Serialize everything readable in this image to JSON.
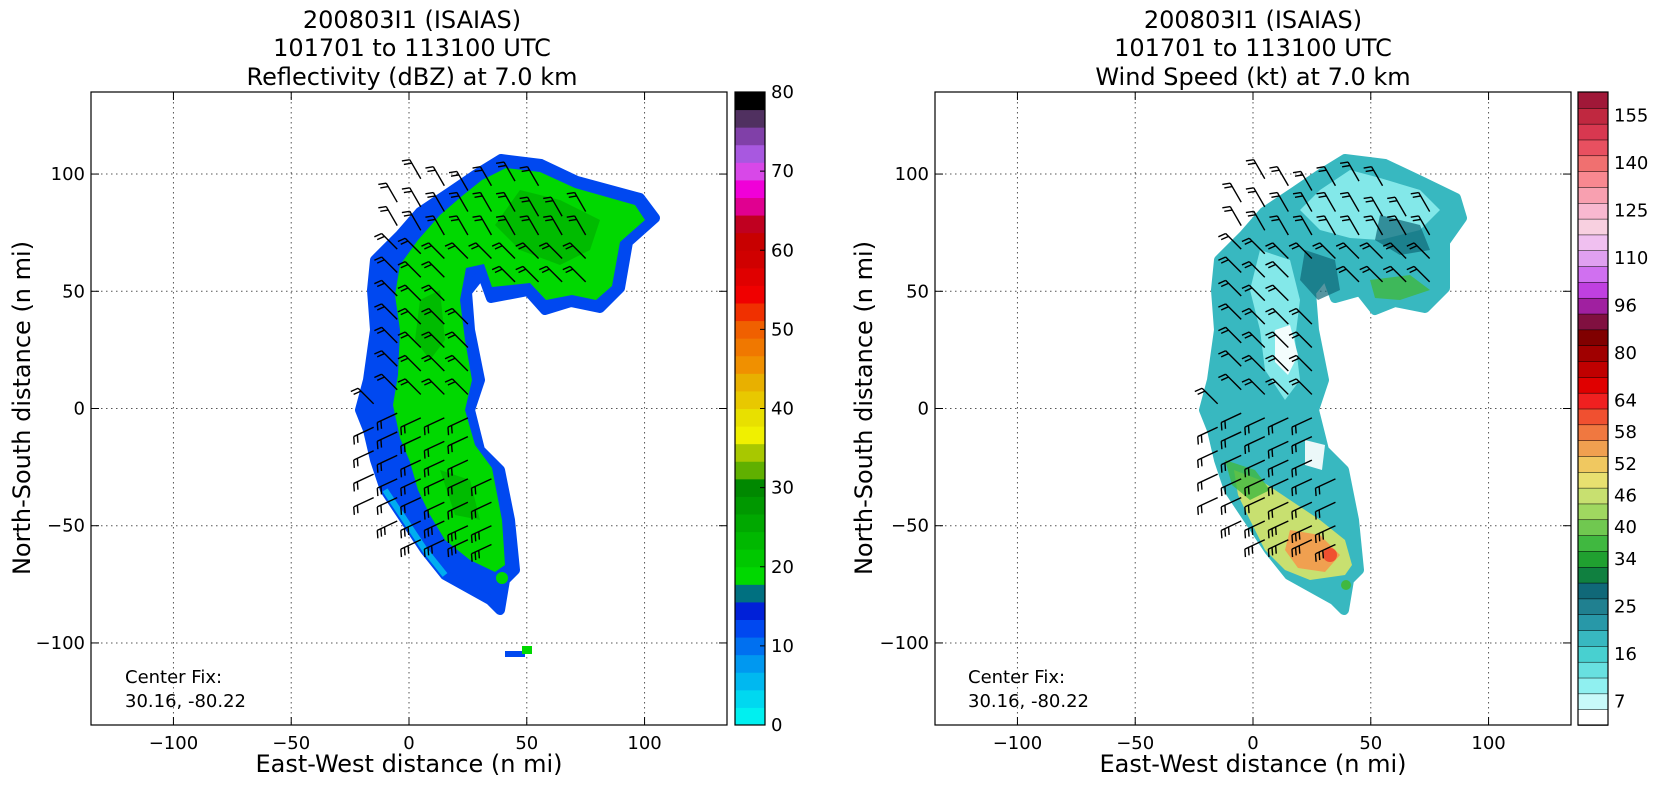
{
  "chart_data": [
    {
      "type": "heatmap",
      "title_lines": [
        "200803I1 (ISAIAS)",
        "101701 to 113100 UTC",
        "Reflectivity (dBZ) at 7.0 km"
      ],
      "xlabel": "East-West distance (n mi)",
      "ylabel": "North-South distance (n mi)",
      "xlim": [
        -135,
        135
      ],
      "ylim": [
        -135,
        135
      ],
      "x_ticks": [
        -100,
        -50,
        0,
        50,
        100
      ],
      "x_tick_labels": [
        "−100",
        "−50",
        "0",
        "50",
        "100"
      ],
      "y_ticks": [
        100,
        50,
        0,
        -50,
        -100
      ],
      "y_tick_labels": [
        "100",
        "50",
        "0",
        "−50",
        "−100"
      ],
      "grid": true,
      "grid_style": "dotted",
      "annotation_lines": [
        "Center Fix:",
        "30.16, -80.22"
      ],
      "colorbar": {
        "min": 0,
        "max": 80,
        "tick_values": [
          0,
          10,
          20,
          30,
          40,
          50,
          60,
          70,
          80
        ],
        "tick_labels": [
          "0",
          "10",
          "20",
          "30",
          "40",
          "50",
          "60",
          "70",
          "80"
        ],
        "colors": [
          "#00f0f0",
          "#00d8f0",
          "#00b8f0",
          "#0098f0",
          "#0070f0",
          "#0048f0",
          "#0020d8",
          "#007080",
          "#00d800",
          "#00c800",
          "#00b800",
          "#00a800",
          "#009800",
          "#008800",
          "#60b000",
          "#a8c800",
          "#f0f000",
          "#e8e000",
          "#e8c800",
          "#e8b000",
          "#f09000",
          "#f07800",
          "#f06000",
          "#f03000",
          "#f00000",
          "#e00000",
          "#d00000",
          "#c80000",
          "#c00020",
          "#e00090",
          "#f000d8",
          "#d848e8",
          "#a858e0",
          "#8040a8",
          "#503060",
          "#000000"
        ]
      },
      "echo_coverage": "curved band from about (-20, 100) through (0, 60), (10, 0) to (40, -75), with an eastern lobe from 0 to 100 mi east near 50 to 105 mi north",
      "dominant_range_dBZ": [
        18,
        30
      ],
      "edge_range_dBZ": [
        0,
        14
      ]
    },
    {
      "type": "heatmap",
      "title_lines": [
        "200803I1 (ISAIAS)",
        "101701 to 113100 UTC",
        "Wind Speed (kt) at 7.0 km"
      ],
      "xlabel": "East-West distance (n mi)",
      "ylabel": "North-South distance (n mi)",
      "xlim": [
        -135,
        135
      ],
      "ylim": [
        -135,
        135
      ],
      "x_ticks": [
        -100,
        -50,
        0,
        50,
        100
      ],
      "x_tick_labels": [
        "−100",
        "−50",
        "0",
        "50",
        "100"
      ],
      "y_ticks": [
        100,
        50,
        0,
        -50,
        -100
      ],
      "y_tick_labels": [
        "100",
        "50",
        "0",
        "−50",
        "−100"
      ],
      "grid": true,
      "grid_style": "dotted",
      "annotation_lines": [
        "Center Fix:",
        "30.16, -80.22"
      ],
      "colorbar": {
        "tick_labels": [
          "7",
          "16",
          "25",
          "34",
          "40",
          "46",
          "52",
          "58",
          "64",
          "80",
          "96",
          "110",
          "125",
          "140",
          "155"
        ],
        "colors": [
          "#ffffff",
          "#c8fafa",
          "#90f0f0",
          "#68e0e0",
          "#48d0d0",
          "#38b8c0",
          "#2898a8",
          "#208090",
          "#106878",
          "#108040",
          "#20a030",
          "#40b840",
          "#70c850",
          "#a0d860",
          "#c8e070",
          "#e8e070",
          "#f0c860",
          "#f0a050",
          "#f07840",
          "#f05030",
          "#f02020",
          "#e00000",
          "#c00000",
          "#a00000",
          "#800000",
          "#801040",
          "#a020a0",
          "#c040e0",
          "#d070f0",
          "#e0a0f0",
          "#f0c0f0",
          "#f8d0e0",
          "#f8b8d0",
          "#f8a0b0",
          "#f88890",
          "#f07070",
          "#e85060",
          "#d83850",
          "#c02840",
          "#a01838"
        ]
      },
      "swath_coverage": "same curved band as the reflectivity panel",
      "dominant_range_kt": [
        12,
        28
      ],
      "max_range_kt": [
        46,
        58
      ],
      "max_location": "south tip near (30, -60)"
    }
  ]
}
